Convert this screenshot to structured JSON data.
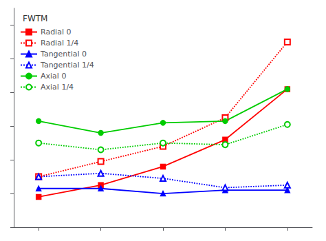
{
  "chart_data": {
    "type": "line",
    "legend_title": "FWTM",
    "x": [
      0,
      1,
      2,
      3,
      4
    ],
    "series": [
      {
        "name": "Radial 0",
        "color": "#FF0000",
        "marker": "square",
        "line_style": "solid",
        "values": [
          1.8,
          2.5,
          3.6,
          5.2,
          8.2
        ]
      },
      {
        "name": "Radial 1/4",
        "color": "#FF0000",
        "marker": "open_square",
        "line_style": "dotted",
        "values": [
          3.0,
          3.9,
          4.8,
          6.5,
          11.0
        ]
      },
      {
        "name": "Tangential 0",
        "color": "#0000FF",
        "marker": "triangle",
        "line_style": "solid",
        "values": [
          2.3,
          2.3,
          2.0,
          2.2,
          2.2
        ]
      },
      {
        "name": "Tangential 1/4",
        "color": "#0000FF",
        "marker": "open_triangle",
        "line_style": "dotted",
        "values": [
          3.0,
          3.2,
          2.9,
          2.35,
          2.5
        ]
      },
      {
        "name": "Axial 0",
        "color": "#00CC00",
        "marker": "circle",
        "line_style": "solid",
        "values": [
          6.3,
          5.6,
          6.2,
          6.3,
          8.2
        ]
      },
      {
        "name": "Axial 1/4",
        "color": "#00CC00",
        "marker": "open_circle",
        "line_style": "dotted",
        "values": [
          5.0,
          4.6,
          5.0,
          4.9,
          6.1
        ]
      }
    ],
    "xlim": [
      -0.4,
      4.4
    ],
    "xticks": [
      0,
      1,
      2,
      3,
      4
    ],
    "ylim": [
      0,
      13
    ],
    "yticks": [
      0,
      2,
      4,
      6,
      8,
      10,
      12
    ],
    "tick_labels": false,
    "grid": false,
    "legend": "upper left"
  }
}
